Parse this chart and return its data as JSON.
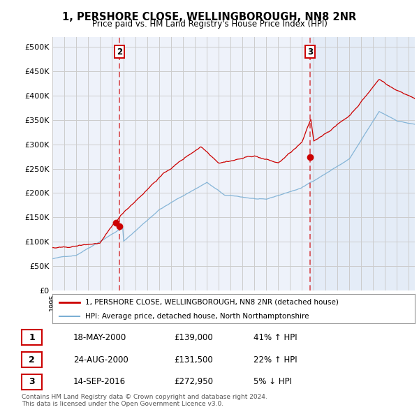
{
  "title": "1, PERSHORE CLOSE, WELLINGBOROUGH, NN8 2NR",
  "subtitle": "Price paid vs. HM Land Registry's House Price Index (HPI)",
  "legend_line1": "1, PERSHORE CLOSE, WELLINGBOROUGH, NN8 2NR (detached house)",
  "legend_line2": "HPI: Average price, detached house, North Northamptonshire",
  "footer1": "Contains HM Land Registry data © Crown copyright and database right 2024.",
  "footer2": "This data is licensed under the Open Government Licence v3.0.",
  "sale_color": "#cc0000",
  "hpi_color": "#7bafd4",
  "background_color": "#ffffff",
  "plot_bg_color": "#eef2fa",
  "grid_color": "#cccccc",
  "ylim": [
    0,
    520000
  ],
  "yticks": [
    0,
    50000,
    100000,
    150000,
    200000,
    250000,
    300000,
    350000,
    400000,
    450000,
    500000
  ],
  "ytick_labels": [
    "£0",
    "£50K",
    "£100K",
    "£150K",
    "£200K",
    "£250K",
    "£300K",
    "£350K",
    "£400K",
    "£450K",
    "£500K"
  ],
  "transactions": [
    {
      "num": 1,
      "date": "18-MAY-2000",
      "year": 2000.37,
      "price": 139000,
      "hpi_pct": "41% ↑ HPI"
    },
    {
      "num": 2,
      "date": "24-AUG-2000",
      "year": 2000.64,
      "price": 131500,
      "hpi_pct": "22% ↑ HPI"
    },
    {
      "num": 3,
      "date": "14-SEP-2016",
      "year": 2016.71,
      "price": 272950,
      "hpi_pct": "5% ↓ HPI"
    }
  ],
  "xmin": 1995.0,
  "xmax": 2025.5,
  "shade_from": 2016.71
}
